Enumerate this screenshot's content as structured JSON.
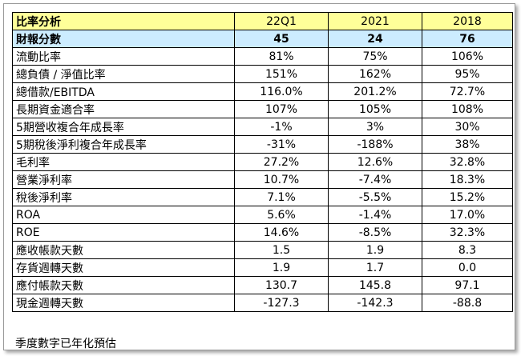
{
  "table": {
    "header": {
      "label": "比率分析",
      "columns": [
        "22Q1",
        "2021",
        "2018"
      ]
    },
    "score_row": {
      "label": "財報分數",
      "values": [
        "45",
        "24",
        "76"
      ]
    },
    "rows": [
      {
        "label": "流動比率",
        "values": [
          "81%",
          "75%",
          "106%"
        ]
      },
      {
        "label": "總負債 / 淨值比率",
        "values": [
          "151%",
          "162%",
          "95%"
        ]
      },
      {
        "label": "總借款/EBITDA",
        "values": [
          "116.0%",
          "201.2%",
          "72.7%"
        ]
      },
      {
        "label": "長期資金適合率",
        "values": [
          "107%",
          "105%",
          "108%"
        ]
      },
      {
        "label": "5期營收複合年成長率",
        "values": [
          "-1%",
          "3%",
          "30%"
        ]
      },
      {
        "label": "5期稅後淨利複合年成長率",
        "values": [
          "-31%",
          "-188%",
          "38%"
        ]
      },
      {
        "label": "毛利率",
        "values": [
          "27.2%",
          "12.6%",
          "32.8%"
        ]
      },
      {
        "label": "營業淨利率",
        "values": [
          "10.7%",
          "-7.4%",
          "18.3%"
        ]
      },
      {
        "label": "稅後淨利率",
        "values": [
          "7.1%",
          "-5.5%",
          "15.2%"
        ]
      },
      {
        "label": "ROA",
        "values": [
          "5.6%",
          "-1.4%",
          "17.0%"
        ]
      },
      {
        "label": "ROE",
        "values": [
          "14.6%",
          "-8.5%",
          "32.3%"
        ]
      },
      {
        "label": "應收帳款天數",
        "values": [
          "1.5",
          "1.9",
          "8.3"
        ]
      },
      {
        "label": "存貨週轉天數",
        "values": [
          "1.9",
          "1.7",
          "0.0"
        ]
      },
      {
        "label": "應付帳款天數",
        "values": [
          "130.7",
          "145.8",
          "97.1"
        ]
      },
      {
        "label": "現金週轉天數",
        "values": [
          "-127.3",
          "-142.3",
          "-88.8"
        ]
      }
    ]
  },
  "footnote": "季度數字已年化預估",
  "colors": {
    "header_bg": "#ffff99",
    "score_bg": "#ccecff",
    "border": "#000000"
  }
}
